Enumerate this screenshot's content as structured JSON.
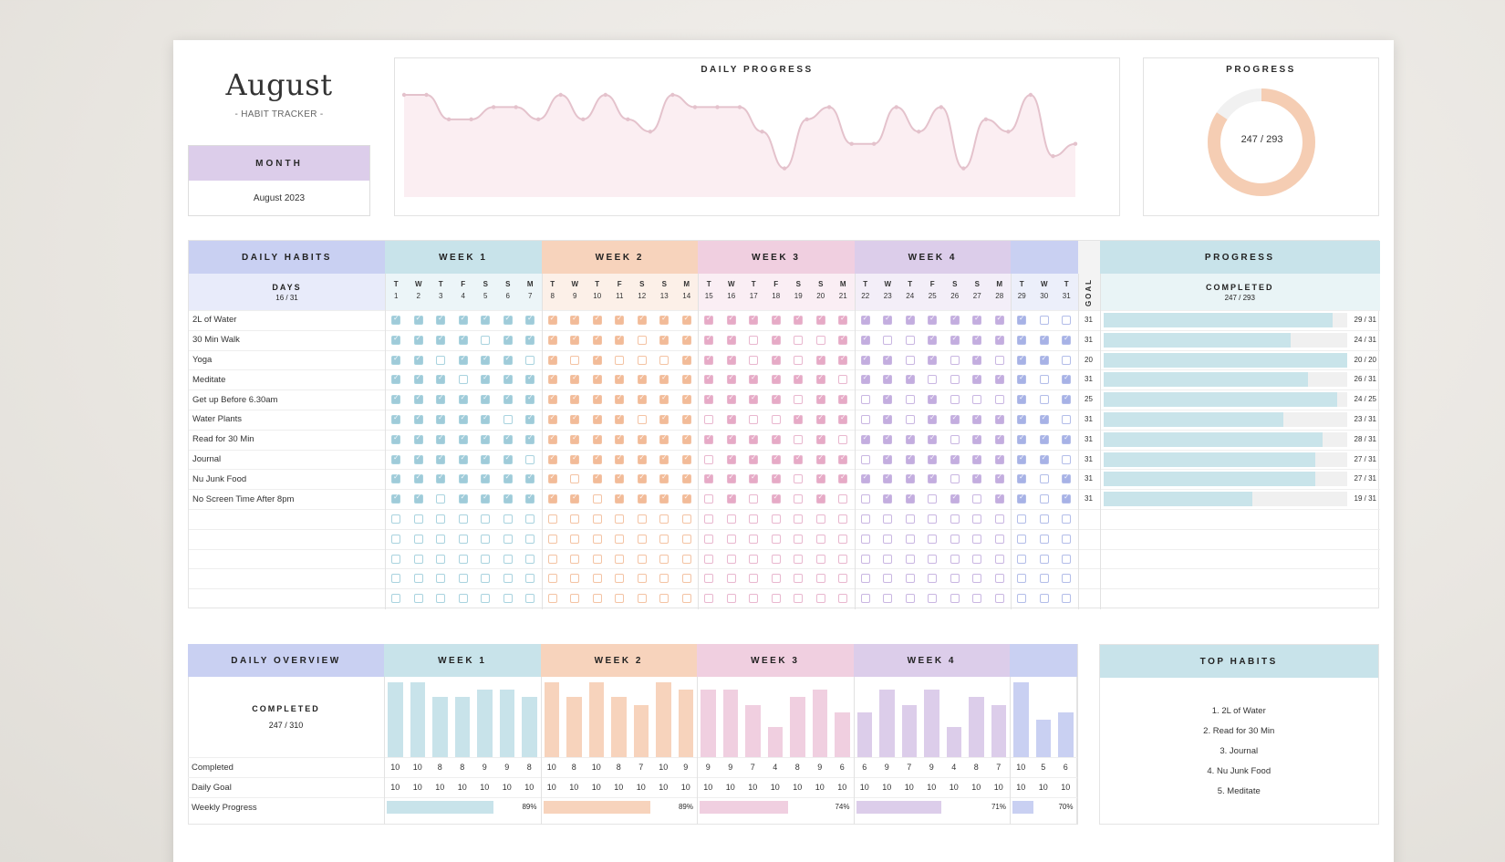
{
  "header": {
    "title": "August",
    "subtitle": "- HABIT TRACKER -",
    "month_label": "MONTH",
    "month_value": "August  2023"
  },
  "daily_progress": {
    "title": "DAILY PROGRESS"
  },
  "progress_donut": {
    "title": "PROGRESS",
    "value_text": "247 / 293",
    "completed": 247,
    "total": 293
  },
  "colors": {
    "week1": "#c8e3ea",
    "week2": "#f7d3bc",
    "week3": "#f0cfe0",
    "week4": "#dccdea",
    "week5": "#c9d0f2",
    "habits_header": "#c9d0f2",
    "progress_header": "#c8e3ea",
    "donut": "#f5cdb3",
    "line": "#e4c2cc",
    "area": "#fbeef2"
  },
  "habits_table": {
    "header_label": "DAILY HABITS",
    "days_label": "DAYS",
    "days_value": "16 / 31",
    "goal_label": "GOAL",
    "progress_label": "PROGRESS",
    "completed_label": "COMPLETED",
    "completed_value": "247 / 293",
    "weeks": [
      "WEEK 1",
      "WEEK 2",
      "WEEK 3",
      "WEEK 4",
      ""
    ],
    "weekdays": [
      "T",
      "W",
      "T",
      "F",
      "S",
      "S",
      "M",
      "T",
      "W",
      "T",
      "F",
      "S",
      "S",
      "M",
      "T",
      "W",
      "T",
      "F",
      "S",
      "S",
      "M",
      "T",
      "W",
      "T",
      "F",
      "S",
      "S",
      "M",
      "T",
      "W",
      "T"
    ],
    "days": [
      "1",
      "2",
      "3",
      "4",
      "5",
      "6",
      "7",
      "8",
      "9",
      "10",
      "11",
      "12",
      "13",
      "14",
      "15",
      "16",
      "17",
      "18",
      "19",
      "20",
      "21",
      "22",
      "23",
      "24",
      "25",
      "26",
      "27",
      "28",
      "29",
      "30",
      "31"
    ],
    "habits": [
      {
        "name": "2L of Water",
        "goal": "31",
        "progress": "29 / 31",
        "pct": 94,
        "checks": "1111111111111111111111111111100"
      },
      {
        "name": "30 Min Walk",
        "goal": "31",
        "progress": "24 / 31",
        "pct": 77,
        "checks": "1111011111101111010011001111111"
      },
      {
        "name": "Yoga",
        "goal": "20",
        "progress": "20 / 20",
        "pct": 100,
        "checks": "1101110101000111010111101010110"
      },
      {
        "name": "Meditate",
        "goal": "31",
        "progress": "26 / 31",
        "pct": 84,
        "checks": "1110111111111111111101110011101"
      },
      {
        "name": "Get up Before 6.30am",
        "goal": "25",
        "progress": "24 / 25",
        "pct": 96,
        "checks": "1111111111111111110110101000101"
      },
      {
        "name": "Water Plants",
        "goal": "31",
        "progress": "23 / 31",
        "pct": 74,
        "checks": "1111101111101101001110101111110"
      },
      {
        "name": "Read for 30 Min",
        "goal": "31",
        "progress": "28 / 31",
        "pct": 90,
        "checks": "1111111111111111110101111011111"
      },
      {
        "name": "Journal",
        "goal": "31",
        "progress": "27 / 31",
        "pct": 87,
        "checks": "1111110111111101111110111111110"
      },
      {
        "name": "Nu Junk Food",
        "goal": "31",
        "progress": "27 / 31",
        "pct": 87,
        "checks": "1111111101111111110111111011101"
      },
      {
        "name": "No Screen Time After 8pm",
        "goal": "31",
        "progress": "19 / 31",
        "pct": 61,
        "checks": "1101111110111101010100110101101"
      },
      {
        "name": "",
        "goal": "",
        "progress": "",
        "pct": 0,
        "checks": "0000000000000000000000000000000"
      },
      {
        "name": "",
        "goal": "",
        "progress": "",
        "pct": 0,
        "checks": "0000000000000000000000000000000"
      },
      {
        "name": "",
        "goal": "",
        "progress": "",
        "pct": 0,
        "checks": "0000000000000000000000000000000"
      },
      {
        "name": "",
        "goal": "",
        "progress": "",
        "pct": 0,
        "checks": "0000000000000000000000000000000"
      },
      {
        "name": "",
        "goal": "",
        "progress": "",
        "pct": 0,
        "checks": "0000000000000000000000000000000"
      }
    ]
  },
  "overview": {
    "header_label": "DAILY OVERVIEW",
    "completed_label": "COMPLETED",
    "completed_value": "247 / 310",
    "row_labels": [
      "Completed",
      "Daily Goal",
      "Weekly Progress"
    ],
    "weeks": [
      "WEEK 1",
      "WEEK 2",
      "WEEK 3",
      "WEEK 4",
      ""
    ],
    "weekly_progress": [
      "89%",
      "89%",
      "74%",
      "71%",
      "70%"
    ],
    "weekly_pct": [
      89,
      89,
      74,
      71,
      70
    ]
  },
  "top_habits": {
    "title": "TOP HABITS",
    "items": [
      "1. 2L of Water",
      "2. Read for 30 Min",
      "3. Journal",
      "4. Nu Junk Food",
      "5. Meditate"
    ]
  },
  "chart_data": {
    "type": "bar",
    "title": "Daily Overview",
    "categories": [
      "1",
      "2",
      "3",
      "4",
      "5",
      "6",
      "7",
      "8",
      "9",
      "10",
      "11",
      "12",
      "13",
      "14",
      "15",
      "16",
      "17",
      "18",
      "19",
      "20",
      "21",
      "22",
      "23",
      "24",
      "25",
      "26",
      "27",
      "28",
      "29",
      "30",
      "31"
    ],
    "series": [
      {
        "name": "Completed",
        "values": [
          10,
          10,
          8,
          8,
          9,
          9,
          8,
          10,
          8,
          10,
          8,
          7,
          10,
          9,
          9,
          9,
          7,
          4,
          8,
          9,
          6,
          6,
          9,
          7,
          9,
          4,
          8,
          7,
          10,
          5,
          6
        ]
      },
      {
        "name": "Daily Goal",
        "values": [
          10,
          10,
          10,
          10,
          10,
          10,
          10,
          10,
          10,
          10,
          10,
          10,
          10,
          10,
          10,
          10,
          10,
          10,
          10,
          10,
          10,
          10,
          10,
          10,
          10,
          10,
          10,
          10,
          10,
          10,
          10
        ]
      }
    ],
    "ylim": [
      0,
      10
    ],
    "line_chart_title": "DAILY PROGRESS",
    "line_type": "area"
  }
}
